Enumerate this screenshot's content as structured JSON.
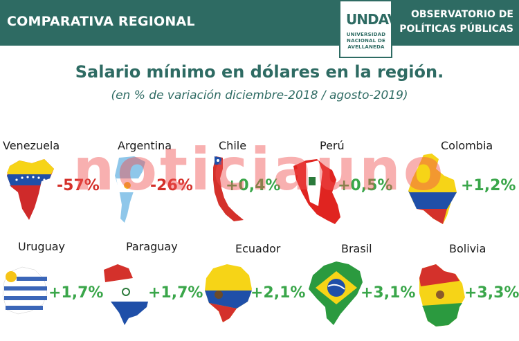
{
  "header": {
    "section": "COMPARATIVA REGIONAL",
    "logo_mark": "UNDAV",
    "logo_lines": [
      "UNIVERSIDAD",
      "NACIONAL DE",
      "AVELLANEDA"
    ],
    "observatory_line1": "OBSERVATORIO DE",
    "observatory_line2": "POLÍTICAS PÚBLICAS"
  },
  "title": "Salario mínimo en dólares en la región.",
  "subtitle": "(en % de variación diciembre-2018 / agosto-2019)",
  "watermark": "noticiauno",
  "colors": {
    "brand": "#2e6b63",
    "negative": "#d4302a",
    "positive": "#3aa64a"
  },
  "countries": [
    {
      "name": "Venezuela",
      "value": "-57%",
      "sign": "negative"
    },
    {
      "name": "Argentina",
      "value": "-26%",
      "sign": "negative"
    },
    {
      "name": "Chile",
      "value": "+0,4%",
      "sign": "positive"
    },
    {
      "name": "Perú",
      "value": "+0,5%",
      "sign": "positive"
    },
    {
      "name": "Colombia",
      "value": "+1,2%",
      "sign": "positive"
    },
    {
      "name": "Uruguay",
      "value": "+1,7%",
      "sign": "positive"
    },
    {
      "name": "Paraguay",
      "value": "+1,7%",
      "sign": "positive"
    },
    {
      "name": "Ecuador",
      "value": "+2,1%",
      "sign": "positive"
    },
    {
      "name": "Brasil",
      "value": "+3,1%",
      "sign": "positive"
    },
    {
      "name": "Bolivia",
      "value": "+3,3%",
      "sign": "positive"
    }
  ]
}
